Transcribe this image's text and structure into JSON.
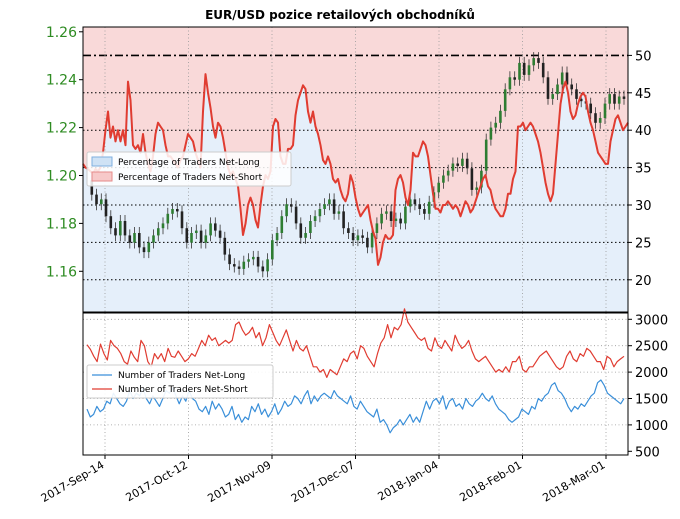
{
  "chart_data": [
    {
      "type": "line",
      "panel": "upper",
      "title": "EUR/USD pozice retailových obchodníků",
      "left_axis": {
        "ticks": [
          "1.26",
          "1.24",
          "1.22",
          "1.20",
          "1.18",
          "1.16"
        ],
        "range": [
          1.143,
          1.262
        ],
        "tick_color": "#2e8b22"
      },
      "right_axis": {
        "ticks": [
          "50",
          "45",
          "40",
          "35",
          "30",
          "25",
          "20"
        ],
        "range": [
          15.7,
          53.8
        ]
      },
      "reference_lines_right": [
        50,
        45,
        40,
        35,
        30,
        25,
        20
      ],
      "legend": {
        "placement": "center-left",
        "entries": [
          "Percentage of Traders Net-Long",
          "Percentage of Traders Net-Short"
        ]
      },
      "fill_colors": {
        "net_long": "#cfe2f5",
        "net_short": "#f7c9c9"
      },
      "series": [
        {
          "name": "Percentage of Traders Net-Short",
          "color": "#e03c31",
          "axis": "right",
          "values": [
            35.5,
            35,
            34.8,
            34.5,
            34.2,
            34.8,
            34.5,
            35,
            37,
            40,
            42.5,
            39,
            40.5,
            38.5,
            40,
            38.5,
            40,
            38,
            46.5,
            44,
            38,
            37.5,
            38,
            37,
            39.5,
            37,
            35.5,
            34.5,
            36.5,
            39.5,
            41,
            40.5,
            40,
            38,
            36.5,
            36.5,
            36,
            35.5,
            35,
            36,
            36.5,
            38,
            39.5,
            39,
            38.5,
            37,
            36,
            35,
            42.5,
            47.5,
            45,
            43,
            40.5,
            39,
            41,
            40.5,
            39,
            37,
            35,
            34,
            34.5,
            33.5,
            32.5,
            29.5,
            26,
            27.5,
            30,
            31,
            30,
            28,
            27,
            30,
            32.5,
            34,
            33.5,
            34.5,
            40.5,
            41.5,
            41,
            36.5,
            35.5,
            35.5,
            37.5,
            37.5,
            38,
            42,
            44,
            45,
            46,
            45.5,
            42.5,
            41,
            42.5,
            40.5,
            39.5,
            38,
            36,
            35.5,
            36.5,
            35.5,
            33.5,
            33,
            33.5,
            32,
            31,
            30.5,
            31.5,
            34,
            33,
            31,
            29.5,
            28.5,
            29,
            29.5,
            30,
            28,
            26.5,
            25.5,
            22,
            23,
            25,
            26,
            25.5,
            25.5,
            26,
            32,
            33.5,
            34,
            33,
            31,
            30,
            32,
            37,
            36.5,
            36.5,
            37.5,
            38.5,
            38,
            36.5,
            34,
            31.5,
            29.5,
            29.5,
            29,
            30,
            30,
            30.5,
            30,
            29.5,
            30,
            29.5,
            28.5,
            29.5,
            30.5,
            30,
            29,
            29.5,
            30.5,
            31.5,
            32.5,
            33.5,
            34,
            32.5,
            32,
            30.5,
            29.5,
            29,
            28.5,
            28.5,
            29.5,
            31.5,
            31.5,
            33.5,
            34.5,
            40.5,
            40.5,
            41,
            40,
            40.5,
            41,
            40.5,
            39.5,
            38.5,
            37,
            35,
            33,
            31.5,
            30.5,
            31.5,
            35.5,
            39.5,
            43.5,
            45.5,
            46.5,
            45,
            42.5,
            41.5,
            42,
            43.5,
            44.5,
            45,
            44.5,
            42.5,
            41,
            40,
            38.5,
            37,
            36.5,
            36,
            35.5,
            35.5,
            38.5,
            40,
            41.5,
            42,
            41,
            40,
            40.5,
            41
          ]
        },
        {
          "name": "EUR/USD",
          "style": "candlestick",
          "color": "#2e7d32",
          "axis": "left",
          "values": [
            1.198,
            1.192,
            1.188,
            1.19,
            1.183,
            1.178,
            1.175,
            1.181,
            1.175,
            1.172,
            1.176,
            1.17,
            1.168,
            1.172,
            1.175,
            1.178,
            1.18,
            1.184,
            1.186,
            1.185,
            1.178,
            1.172,
            1.176,
            1.177,
            1.172,
            1.175,
            1.18,
            1.177,
            1.174,
            1.167,
            1.163,
            1.162,
            1.161,
            1.164,
            1.165,
            1.166,
            1.162,
            1.16,
            1.165,
            1.173,
            1.176,
            1.183,
            1.188,
            1.187,
            1.18,
            1.174,
            1.176,
            1.181,
            1.183,
            1.186,
            1.188,
            1.19,
            1.184,
            1.185,
            1.178,
            1.176,
            1.173,
            1.175,
            1.174,
            1.17,
            1.176,
            1.18,
            1.184,
            1.185,
            1.181,
            1.182,
            1.18,
            1.187,
            1.19,
            1.188,
            1.186,
            1.184,
            1.189,
            1.193,
            1.197,
            1.2,
            1.202,
            1.205,
            1.204,
            1.207,
            1.203,
            1.194,
            1.195,
            1.202,
            1.215,
            1.22,
            1.222,
            1.227,
            1.236,
            1.241,
            1.24,
            1.247,
            1.242,
            1.246,
            1.249,
            1.247,
            1.241,
            1.232,
            1.234,
            1.238,
            1.243,
            1.238,
            1.236,
            1.232,
            1.231,
            1.23,
            1.226,
            1.222,
            1.224,
            1.23,
            1.234,
            1.23,
            1.233,
            1.232
          ],
          "note": "approximate candle midpoints"
        }
      ]
    },
    {
      "type": "line",
      "panel": "lower",
      "right_axis": {
        "ticks": [
          "3000",
          "2500",
          "2000",
          "1500",
          "1000",
          "500"
        ],
        "range": [
          430,
          3120
        ]
      },
      "x_ticks": [
        "2017-Sep-14",
        "2017-Oct-12",
        "2017-Nov-09",
        "2017-Dec-07",
        "2018-Jan-04",
        "2018-Feb-01",
        "2018-Mar-01"
      ],
      "legend": {
        "placement": "center-left",
        "entries": [
          "Number of Traders Net-Long",
          "Number of Traders Net-Short"
        ]
      },
      "series": [
        {
          "name": "Number of Traders Net-Short",
          "color": "#e03c31",
          "values": [
            2520,
            2430,
            2300,
            2200,
            2530,
            2350,
            2230,
            2600,
            2500,
            2450,
            2350,
            2200,
            2150,
            2400,
            2280,
            2200,
            2600,
            2500,
            2200,
            2100,
            2350,
            2250,
            2350,
            2200,
            2450,
            2300,
            2280,
            2400,
            2300,
            2200,
            2250,
            2350,
            2300,
            2450,
            2600,
            2500,
            2700,
            2600,
            2650,
            2500,
            2550,
            2600,
            2550,
            2600,
            2900,
            2950,
            2800,
            2700,
            2750,
            2850,
            2650,
            2750,
            2500,
            2650,
            2900,
            2750,
            2600,
            2500,
            2650,
            2800,
            2600,
            2400,
            2600,
            2450,
            2400,
            2500,
            2300,
            2100,
            2100,
            2000,
            2050,
            1900,
            2050,
            2000,
            1950,
            2100,
            2250,
            2200,
            2350,
            2400,
            2250,
            2500,
            2450,
            2300,
            2200,
            2100,
            2350,
            2550,
            2650,
            2900,
            2650,
            2850,
            2800,
            2900,
            3200,
            2950,
            2850,
            2750,
            2650,
            2600,
            2650,
            2450,
            2400,
            2650,
            2500,
            2450,
            2600,
            2500,
            2400,
            2700,
            2550,
            2450,
            2500,
            2600,
            2400,
            2250,
            2200,
            2250,
            2300,
            2200,
            2100,
            2000,
            2050,
            2000,
            2100,
            2000,
            2200,
            2200,
            2300,
            2050,
            2000,
            2100,
            2100,
            2200,
            2300,
            2350,
            2400,
            2300,
            2200,
            2100,
            2050,
            2100,
            2300,
            2400,
            2250,
            2200,
            2350,
            2300,
            2450,
            2400,
            2300,
            2200,
            2200,
            2050,
            2300,
            2250,
            2100,
            2200,
            2250,
            2300
          ]
        },
        {
          "name": "Number of Traders Net-Long",
          "color": "#3a8fd9",
          "values": [
            1300,
            1150,
            1200,
            1350,
            1250,
            1300,
            1450,
            1400,
            1600,
            1500,
            1400,
            1350,
            1450,
            1650,
            1500,
            1600,
            1550,
            1700,
            1500,
            1400,
            1550,
            1450,
            1350,
            1500,
            1650,
            1600,
            1700,
            1550,
            1400,
            1550,
            1450,
            1650,
            1500,
            1450,
            1300,
            1250,
            1350,
            1200,
            1450,
            1300,
            1400,
            1300,
            1150,
            1200,
            1350,
            1100,
            1200,
            1050,
            1150,
            1100,
            1350,
            1250,
            1400,
            1200,
            1300,
            1150,
            1250,
            1400,
            1200,
            1300,
            1450,
            1350,
            1400,
            1550,
            1500,
            1400,
            1550,
            1650,
            1400,
            1550,
            1450,
            1550,
            1600,
            1550,
            1500,
            1650,
            1550,
            1500,
            1450,
            1400,
            1550,
            1350,
            1300,
            1450,
            1350,
            1250,
            1200,
            1150,
            1300,
            1050,
            1100,
            1000,
            850,
            950,
            1000,
            1100,
            1000,
            1100,
            1200,
            1050,
            1150,
            1050,
            1250,
            1450,
            1300,
            1450,
            1500,
            1400,
            1550,
            1300,
            1450,
            1500,
            1350,
            1400,
            1300,
            1500,
            1400,
            1350,
            1450,
            1500,
            1600,
            1500,
            1450,
            1550,
            1400,
            1300,
            1250,
            1200,
            1100,
            1050,
            1100,
            1150,
            1300,
            1250,
            1200,
            1350,
            1300,
            1500,
            1450,
            1550,
            1600,
            1750,
            1800,
            1650,
            1600,
            1500,
            1350,
            1250,
            1350,
            1300,
            1400,
            1350,
            1450,
            1550,
            1600,
            1800,
            1850,
            1750,
            1600,
            1550,
            1500,
            1450,
            1400,
            1500
          ]
        }
      ]
    }
  ]
}
